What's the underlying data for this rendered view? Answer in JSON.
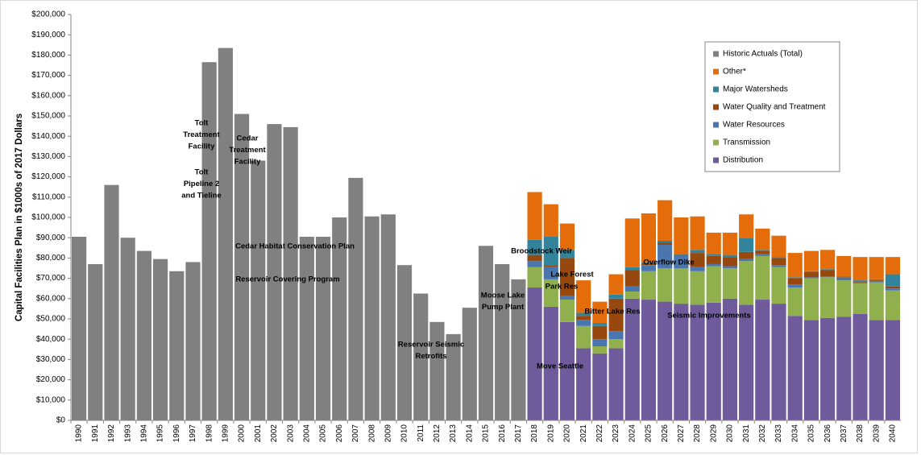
{
  "chart_data": {
    "type": "stacked-bar",
    "y_label": "Capital Facilities Plan in $1000s of 2017 Dollars",
    "categories": [
      "1990",
      "1991",
      "1992",
      "1993",
      "1994",
      "1995",
      "1996",
      "1997",
      "1998",
      "1999",
      "2000",
      "2001",
      "2002",
      "2003",
      "2004",
      "2005",
      "2006",
      "2007",
      "2008",
      "2009",
      "2010",
      "2011",
      "2012",
      "2013",
      "2014",
      "2015",
      "2016",
      "2017",
      "2018",
      "2019",
      "2020",
      "2021",
      "2022",
      "2023",
      "2024",
      "2025",
      "2026",
      "2027",
      "2028",
      "2029",
      "2030",
      "2031",
      "2032",
      "2033",
      "2034",
      "2035",
      "2036",
      "2037",
      "2038",
      "2039",
      "2040"
    ],
    "series": [
      {
        "name": "Historic Actuals (Total)",
        "color": "#808080",
        "values": [
          90500,
          77000,
          116000,
          90000,
          83500,
          79500,
          73500,
          78000,
          176500,
          183500,
          151000,
          128000,
          146000,
          144500,
          90500,
          90500,
          100000,
          119500,
          100500,
          101500,
          76500,
          62500,
          48500,
          42500,
          55500,
          86000,
          77000,
          69500,
          null,
          null,
          null,
          null,
          null,
          null,
          null,
          null,
          null,
          null,
          null,
          null,
          null,
          null,
          null,
          null,
          null,
          null,
          null,
          null,
          null,
          null,
          null
        ]
      },
      {
        "name": "Distribution",
        "color": "#6f5b9b",
        "values": [
          null,
          null,
          null,
          null,
          null,
          null,
          null,
          null,
          null,
          null,
          null,
          null,
          null,
          null,
          null,
          null,
          null,
          null,
          null,
          null,
          null,
          null,
          null,
          null,
          null,
          null,
          null,
          null,
          65500,
          56000,
          48500,
          35500,
          33000,
          35500,
          60000,
          59500,
          58500,
          57500,
          57000,
          58000,
          60000,
          57000,
          59500,
          57500,
          51500,
          49500,
          50500,
          51000,
          52500,
          49500,
          49500
        ]
      },
      {
        "name": "Transmission",
        "color": "#8fb04c",
        "values": [
          null,
          null,
          null,
          null,
          null,
          null,
          null,
          null,
          null,
          null,
          null,
          null,
          null,
          null,
          null,
          null,
          null,
          null,
          null,
          null,
          null,
          null,
          null,
          null,
          null,
          null,
          null,
          null,
          10000,
          13500,
          11000,
          11000,
          3500,
          4500,
          3500,
          14000,
          16500,
          17500,
          16500,
          18000,
          15000,
          21500,
          21500,
          18000,
          14000,
          20500,
          20000,
          18000,
          15000,
          18500,
          14500
        ]
      },
      {
        "name": "Water Resources",
        "color": "#4a76b0",
        "values": [
          null,
          null,
          null,
          null,
          null,
          null,
          null,
          null,
          null,
          null,
          null,
          null,
          null,
          null,
          null,
          null,
          null,
          null,
          null,
          null,
          null,
          null,
          null,
          null,
          null,
          null,
          null,
          null,
          3000,
          6000,
          2000,
          3000,
          3500,
          4000,
          2500,
          3000,
          11500,
          6000,
          2000,
          1000,
          1000,
          1000,
          1000,
          1000,
          1500,
          500,
          500,
          1000,
          500,
          500,
          1000
        ]
      },
      {
        "name": "Water Quality and Treatment",
        "color": "#97480f",
        "values": [
          null,
          null,
          null,
          null,
          null,
          null,
          null,
          null,
          null,
          null,
          null,
          null,
          null,
          null,
          null,
          null,
          null,
          null,
          null,
          null,
          null,
          null,
          null,
          null,
          null,
          null,
          null,
          null,
          3000,
          1000,
          18500,
          2000,
          6500,
          16000,
          8000,
          1000,
          1000,
          500,
          7000,
          4000,
          4500,
          3500,
          1500,
          3500,
          3000,
          2500,
          3000,
          500,
          500,
          500,
          1000
        ]
      },
      {
        "name": "Major Watersheds",
        "color": "#31849b",
        "values": [
          null,
          null,
          null,
          null,
          null,
          null,
          null,
          null,
          null,
          null,
          null,
          null,
          null,
          null,
          null,
          null,
          null,
          null,
          null,
          null,
          null,
          null,
          null,
          null,
          null,
          null,
          null,
          null,
          7500,
          14000,
          4000,
          1500,
          1500,
          2000,
          1500,
          500,
          1000,
          500,
          1500,
          1000,
          1000,
          7000,
          500,
          500,
          500,
          500,
          500,
          500,
          500,
          500,
          6000
        ]
      },
      {
        "name": "Other*",
        "color": "#e46c0a",
        "values": [
          null,
          null,
          null,
          null,
          null,
          null,
          null,
          null,
          null,
          null,
          null,
          null,
          null,
          null,
          null,
          null,
          null,
          null,
          null,
          null,
          null,
          null,
          null,
          null,
          null,
          null,
          null,
          null,
          23500,
          16000,
          13000,
          16000,
          10500,
          10000,
          24000,
          24000,
          20000,
          18000,
          16500,
          10500,
          11000,
          11500,
          10500,
          10500,
          12000,
          10000,
          9500,
          10000,
          11500,
          11000,
          8500
        ]
      }
    ],
    "ylim": [
      0,
      200000
    ],
    "yticks": [
      {
        "value": 0,
        "label": "$0"
      },
      {
        "value": 10000,
        "label": "$10,000"
      },
      {
        "value": 20000,
        "label": "$20,000"
      },
      {
        "value": 30000,
        "label": "$30,000"
      },
      {
        "value": 40000,
        "label": "$40,000"
      },
      {
        "value": 50000,
        "label": "$50,000"
      },
      {
        "value": 60000,
        "label": "$60,000"
      },
      {
        "value": 70000,
        "label": "$70,000"
      },
      {
        "value": 80000,
        "label": "$80,000"
      },
      {
        "value": 90000,
        "label": "$90,000"
      },
      {
        "value": 100000,
        "label": "$100,000"
      },
      {
        "value": 110000,
        "label": "$110,000"
      },
      {
        "value": 120000,
        "label": "$120,000"
      },
      {
        "value": 130000,
        "label": "$130,000"
      },
      {
        "value": 140000,
        "label": "$140,000"
      },
      {
        "value": 150000,
        "label": "$150,000"
      },
      {
        "value": 160000,
        "label": "$160,000"
      },
      {
        "value": 170000,
        "label": "$170,000"
      },
      {
        "value": 180000,
        "label": "$180,000"
      },
      {
        "value": 190000,
        "label": "$190,000"
      },
      {
        "value": 200000,
        "label": "$200,000"
      }
    ],
    "grid": false,
    "legend": "top-right",
    "annotations": [
      {
        "lines": [
          "Tolt",
          "Treatment",
          "Facility"
        ],
        "color": "#8db4e2"
      },
      {
        "lines": [
          "Cedar",
          "Treatment",
          "Facility"
        ],
        "color": "#8db4e2"
      },
      {
        "lines": [
          "Tolt",
          "Pipeline 2",
          "and Tieline"
        ],
        "color": "#8db4e2"
      },
      {
        "lines": [
          "Cedar Habitat Conservation Plan"
        ],
        "color": "#8db4e2"
      },
      {
        "lines": [
          "Reservoir Covering Program"
        ],
        "color": "#8db4e2"
      },
      {
        "lines": [
          "Moose Lake",
          "Pump Plant"
        ],
        "color": "#8db4e2"
      },
      {
        "lines": [
          "Reservoir Seismic",
          "Retrofits"
        ],
        "color": "#8db4e2"
      },
      {
        "lines": [
          "Broodstock Weir"
        ],
        "color": "#000000"
      },
      {
        "lines": [
          "Lake Forest"
        ],
        "color": "#000000"
      },
      {
        "lines": [
          "Park Res"
        ],
        "color": "#000000"
      },
      {
        "lines": [
          "Bitter Lake Res"
        ],
        "color": "#000000"
      },
      {
        "lines": [
          "Overflow Dike"
        ],
        "color": "#000000"
      },
      {
        "lines": [
          "Seismic Improvements"
        ],
        "color": "#000000"
      },
      {
        "lines": [
          "Move Seattle"
        ],
        "color": "#000000"
      }
    ]
  }
}
